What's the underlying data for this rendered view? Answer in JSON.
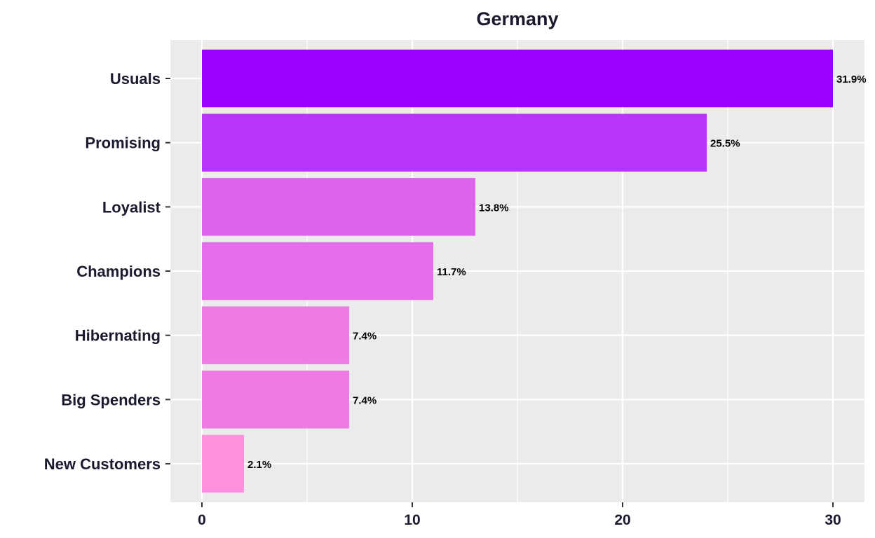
{
  "chart_data": {
    "type": "bar",
    "orientation": "horizontal",
    "title": "Germany",
    "xlabel": "",
    "ylabel": "",
    "categories": [
      "Usuals",
      "Promising",
      "Loyalist",
      "Champions",
      "Hibernating",
      "Big Spenders",
      "New Customers"
    ],
    "values": [
      30,
      24,
      13,
      11,
      7,
      7,
      2
    ],
    "labels": [
      "31.9%",
      "25.5%",
      "13.8%",
      "11.7%",
      "7.4%",
      "7.4%",
      "2.1%"
    ],
    "colors": [
      "#9d00ff",
      "#b936f9",
      "#dc64ec",
      "#e46ee9",
      "#ee7ae6",
      "#ee7ae6",
      "#ff90dd"
    ],
    "xlim": [
      -1.5,
      31.5
    ],
    "xticks": [
      0,
      10,
      20,
      30
    ],
    "grid": true,
    "background": "#ebebeb",
    "legend": "none"
  }
}
